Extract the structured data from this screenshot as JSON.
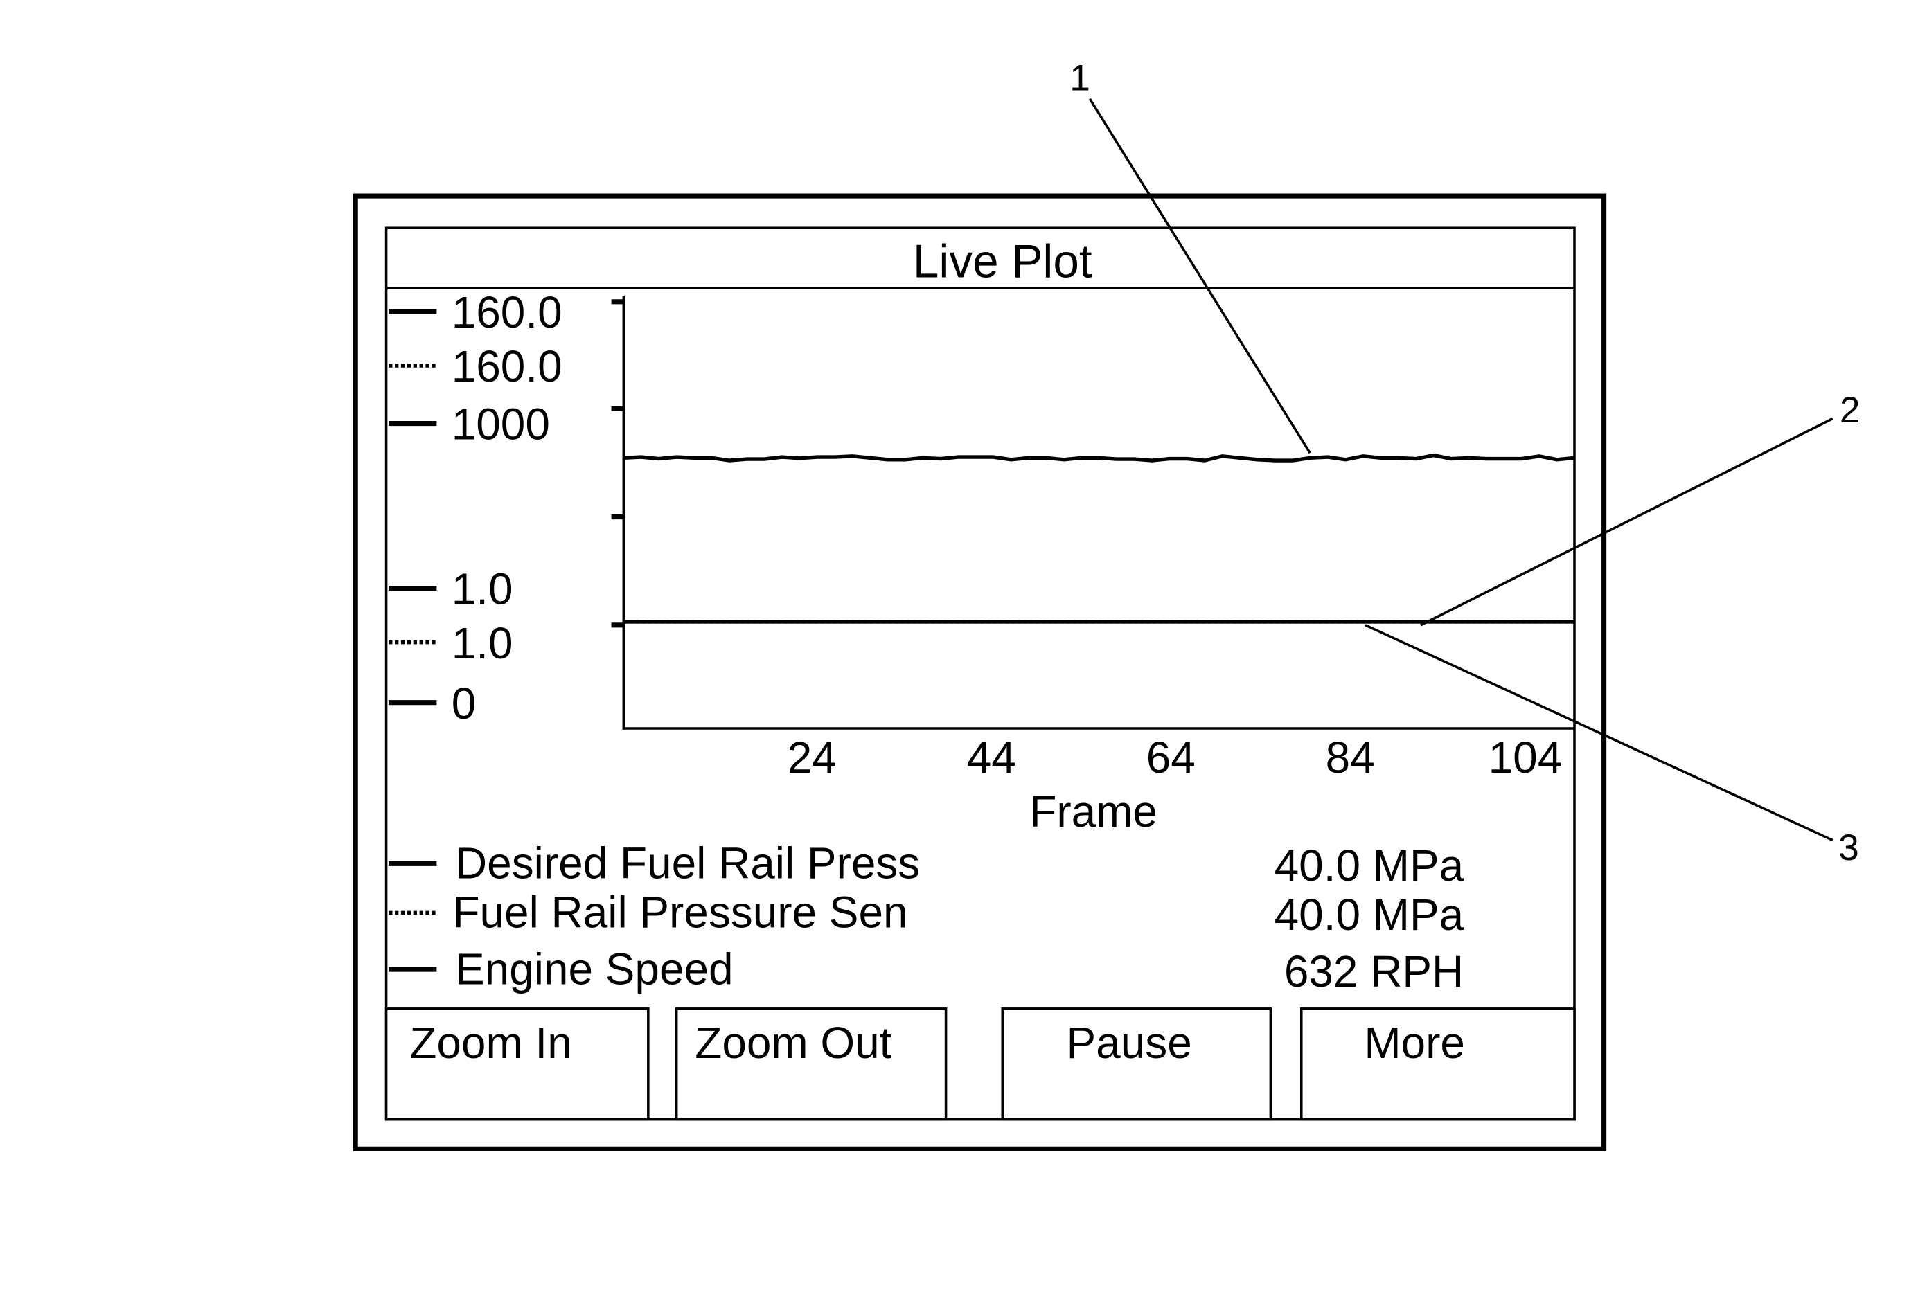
{
  "window": {
    "title": "Live Plot"
  },
  "callouts": [
    "1",
    "2",
    "3"
  ],
  "axis_labels": [
    {
      "text": "160.0",
      "style": "solid"
    },
    {
      "text": "160.0",
      "style": "dotted"
    },
    {
      "text": "1000",
      "style": "solid"
    },
    {
      "text": "1.0",
      "style": "solid"
    },
    {
      "text": "1.0",
      "style": "dotted"
    },
    {
      "text": "0",
      "style": "solid"
    }
  ],
  "legend": [
    {
      "name": "Desired Fuel Rail Press",
      "value": "40.0 MPa",
      "style": "solid"
    },
    {
      "name": "Fuel Rail Pressure Sen",
      "value": "40.0 MPa",
      "style": "dotted"
    },
    {
      "name": "Engine Speed",
      "value": "632 RPH",
      "style": "solid"
    }
  ],
  "buttons": {
    "zoom_in": "Zoom In",
    "zoom_out": "Zoom Out",
    "pause": "Pause",
    "more": "More"
  },
  "chart_data": {
    "type": "line",
    "title": "Live Plot",
    "xlabel": "Frame",
    "x_ticks": [
      "24",
      "44",
      "64",
      "84",
      "104"
    ],
    "xlim": [
      3,
      109
    ],
    "grid": false,
    "series": [
      {
        "name": "Desired Fuel Rail Press",
        "style": "solid",
        "ylim": [
          0,
          160.0
        ],
        "values": [
          40.0,
          40.0
        ]
      },
      {
        "name": "Fuel Rail Pressure Sen",
        "style": "dotted",
        "ylim": [
          0,
          160.0
        ],
        "values": [
          40.0,
          40.0
        ]
      },
      {
        "name": "Engine Speed",
        "style": "solid",
        "ylim": [
          0,
          1000
        ],
        "values": [
          634,
          636,
          632,
          636,
          634,
          634,
          628,
          631,
          631,
          636,
          633,
          636,
          636,
          638,
          634,
          630,
          630,
          634,
          632,
          636,
          636,
          636,
          630,
          634,
          634,
          630,
          634,
          634,
          631,
          631,
          628,
          632,
          632,
          628,
          638,
          634,
          630,
          628,
          628,
          634,
          636,
          630,
          638,
          634,
          634,
          632,
          640,
          632,
          634,
          632,
          632,
          632,
          638,
          630,
          634
        ]
      }
    ]
  }
}
